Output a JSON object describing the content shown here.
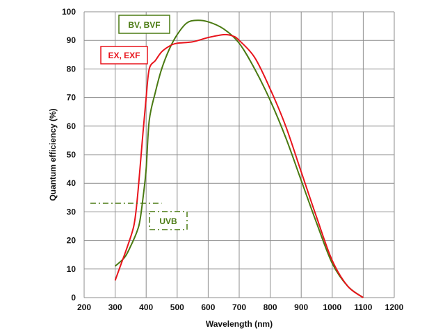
{
  "chart_data": {
    "type": "line",
    "title": "",
    "xlabel": "Wavelength (nm)",
    "ylabel": "Quantum efficiency (%)",
    "xlim": [
      200,
      1200
    ],
    "ylim": [
      0,
      100
    ],
    "xticks": [
      200,
      300,
      400,
      500,
      600,
      700,
      800,
      900,
      1000,
      1100,
      1200
    ],
    "yticks": [
      0,
      10,
      20,
      30,
      40,
      50,
      60,
      70,
      80,
      90,
      100
    ],
    "grid": true,
    "series": [
      {
        "name": "BV, BVF",
        "color": "#4a7a12",
        "x": [
          300,
          330,
          350,
          370,
          380,
          390,
          400,
          410,
          430,
          450,
          475,
          500,
          530,
          560,
          600,
          650,
          700,
          750,
          800,
          850,
          900,
          950,
          1000,
          1050,
          1100
        ],
        "y": [
          11,
          14,
          18,
          23,
          27,
          35,
          45,
          62,
          72,
          80,
          87,
          92,
          96,
          97,
          96.5,
          94,
          89,
          80,
          69,
          56,
          41,
          26,
          12,
          4,
          0
        ]
      },
      {
        "name": "EX, EXF",
        "color": "#e8141c",
        "x": [
          300,
          320,
          340,
          360,
          370,
          380,
          390,
          400,
          410,
          430,
          450,
          475,
          500,
          550,
          600,
          650,
          680,
          700,
          750,
          800,
          850,
          900,
          950,
          1000,
          1050,
          1100
        ],
        "y": [
          6,
          12,
          18,
          25,
          33,
          45,
          58,
          70,
          80,
          83,
          86,
          88,
          89,
          89.5,
          91,
          92,
          91.5,
          90,
          84,
          73,
          60,
          44,
          28,
          13,
          4,
          0
        ]
      }
    ],
    "annotations": [
      {
        "text": "UVB",
        "color": "#4a7a12",
        "reference_y": 33,
        "x_range": [
          220,
          450
        ],
        "style": "dash-dot"
      }
    ]
  }
}
